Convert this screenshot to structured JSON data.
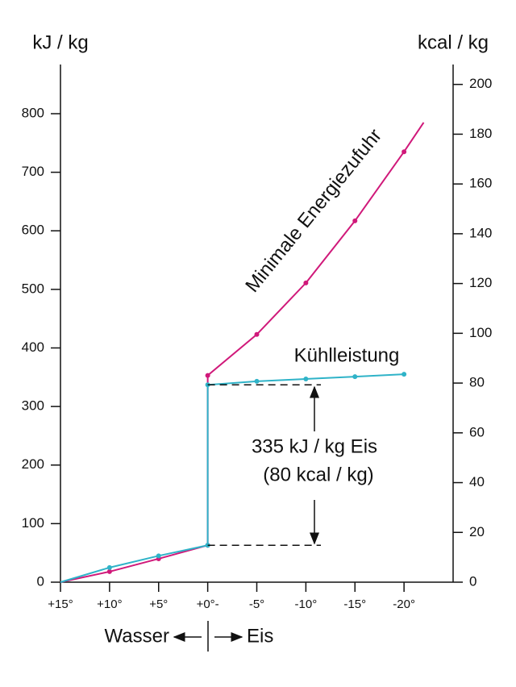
{
  "chart_data": {
    "type": "line",
    "y_label": "kJ / kg",
    "y2_label": "kcal / kg",
    "xlim": [
      15,
      -25
    ],
    "xticks": [
      {
        "value": 15,
        "label": "+15°"
      },
      {
        "value": 10,
        "label": "+10°"
      },
      {
        "value": 5,
        "label": "+5°"
      },
      {
        "value": 0,
        "label": "+0°-"
      },
      {
        "value": -5,
        "label": "-5°"
      },
      {
        "value": -10,
        "label": "-10°"
      },
      {
        "value": -15,
        "label": "-15°"
      },
      {
        "value": -20,
        "label": "-20°"
      }
    ],
    "ylim": [
      0,
      884
    ],
    "yticks": [
      0,
      100,
      200,
      300,
      400,
      500,
      600,
      700,
      800
    ],
    "y2lim": [
      0,
      208
    ],
    "y2ticks": [
      0,
      20,
      40,
      60,
      80,
      100,
      120,
      140,
      160,
      180,
      200
    ],
    "series": [
      {
        "name": "Minimale Energiezufuhr",
        "color": "#d0197a",
        "x": [
          15,
          10,
          5,
          0,
          0,
          -5,
          -10,
          -15,
          -20,
          -22
        ],
        "values": [
          0,
          18,
          40,
          63,
          353,
          423,
          511,
          617,
          735,
          785
        ]
      },
      {
        "name": "Kühlleistung",
        "color": "#2fb3c8",
        "x": [
          15,
          10,
          5,
          0,
          0,
          -5,
          -10,
          -15,
          -20
        ],
        "values": [
          0,
          25,
          45,
          63,
          337,
          343,
          347,
          351,
          355
        ]
      }
    ],
    "annotations": [
      "335 kJ / kg Eis",
      "(80 kcal / kg)",
      "Wasser",
      "Eis"
    ]
  }
}
